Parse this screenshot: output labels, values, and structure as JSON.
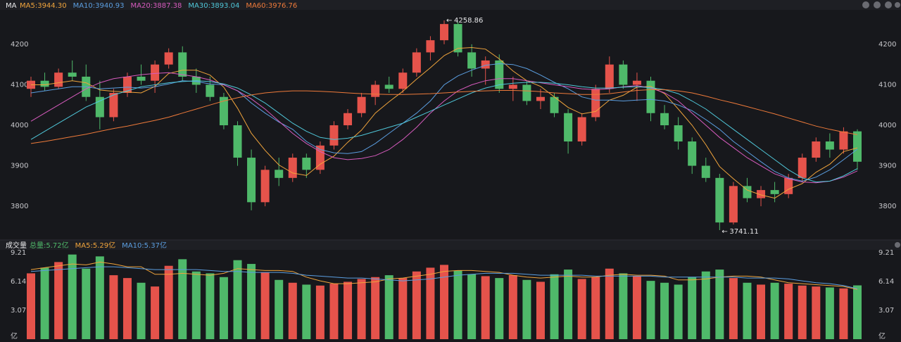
{
  "chart_data": [
    {
      "type": "candlestick",
      "title": "MA",
      "up_color": "#e5534b",
      "down_color": "#4fb96a",
      "grid": false,
      "ylim": [
        3722,
        4285
      ],
      "yticks": [
        3800,
        3900,
        4000,
        4100,
        4200
      ],
      "high_label": "4258.86",
      "low_label": "3741.11",
      "ohlc": [
        [
          4090,
          4120,
          4070,
          4110
        ],
        [
          4110,
          4130,
          4085,
          4095
        ],
        [
          4095,
          4140,
          4090,
          4130
        ],
        [
          4130,
          4160,
          4110,
          4120
        ],
        [
          4120,
          4150,
          4060,
          4070
        ],
        [
          4070,
          4110,
          3990,
          4020
        ],
        [
          4020,
          4090,
          4010,
          4080
        ],
        [
          4080,
          4130,
          4070,
          4120
        ],
        [
          4120,
          4150,
          4100,
          4110
        ],
        [
          4110,
          4160,
          4080,
          4150
        ],
        [
          4150,
          4190,
          4140,
          4180
        ],
        [
          4180,
          4195,
          4110,
          4120
        ],
        [
          4120,
          4140,
          4080,
          4100
        ],
        [
          4100,
          4120,
          4060,
          4070
        ],
        [
          4070,
          4080,
          3990,
          4000
        ],
        [
          4000,
          4010,
          3900,
          3920
        ],
        [
          3920,
          3940,
          3790,
          3810
        ],
        [
          3810,
          3900,
          3800,
          3890
        ],
        [
          3890,
          3920,
          3850,
          3870
        ],
        [
          3870,
          3930,
          3860,
          3920
        ],
        [
          3920,
          3930,
          3870,
          3890
        ],
        [
          3890,
          3960,
          3880,
          3950
        ],
        [
          3950,
          4010,
          3940,
          4000
        ],
        [
          4000,
          4040,
          3990,
          4030
        ],
        [
          4030,
          4080,
          4020,
          4070
        ],
        [
          4070,
          4110,
          4050,
          4100
        ],
        [
          4100,
          4120,
          4080,
          4090
        ],
        [
          4090,
          4140,
          4080,
          4130
        ],
        [
          4130,
          4190,
          4120,
          4180
        ],
        [
          4180,
          4220,
          4160,
          4210
        ],
        [
          4210,
          4258.86,
          4200,
          4250
        ],
        [
          4250,
          4255,
          4170,
          4180
        ],
        [
          4180,
          4200,
          4120,
          4140
        ],
        [
          4140,
          4170,
          4100,
          4160
        ],
        [
          4160,
          4175,
          4080,
          4090
        ],
        [
          4090,
          4120,
          4060,
          4100
        ],
        [
          4100,
          4110,
          4050,
          4060
        ],
        [
          4060,
          4090,
          4040,
          4070
        ],
        [
          4070,
          4080,
          4020,
          4030
        ],
        [
          4030,
          4040,
          3930,
          3960
        ],
        [
          3960,
          4030,
          3950,
          4020
        ],
        [
          4020,
          4100,
          4010,
          4090
        ],
        [
          4090,
          4170,
          4080,
          4150
        ],
        [
          4150,
          4160,
          4090,
          4100
        ],
        [
          4100,
          4130,
          4060,
          4110
        ],
        [
          4110,
          4120,
          4010,
          4030
        ],
        [
          4030,
          4050,
          3990,
          4000
        ],
        [
          4000,
          4020,
          3940,
          3960
        ],
        [
          3960,
          3970,
          3880,
          3900
        ],
        [
          3900,
          3920,
          3860,
          3870
        ],
        [
          3870,
          3880,
          3741.11,
          3760
        ],
        [
          3760,
          3860,
          3755,
          3850
        ],
        [
          3850,
          3870,
          3810,
          3820
        ],
        [
          3820,
          3850,
          3800,
          3840
        ],
        [
          3840,
          3860,
          3810,
          3830
        ],
        [
          3830,
          3880,
          3820,
          3870
        ],
        [
          3870,
          3930,
          3860,
          3920
        ],
        [
          3920,
          3970,
          3910,
          3960
        ],
        [
          3960,
          3980,
          3920,
          3940
        ],
        [
          3940,
          3995,
          3930,
          3985
        ],
        [
          3985,
          3990,
          3890,
          3910
        ]
      ],
      "series": [
        {
          "name": "MA5:3944.30",
          "color": "#f0a43c",
          "values": [
            4100,
            4100,
            4105,
            4110,
            4105,
            4087,
            4084,
            4082,
            4080,
            4096,
            4128,
            4136,
            4136,
            4124,
            4094,
            4042,
            3980,
            3938,
            3902,
            3882,
            3876,
            3904,
            3924,
            3958,
            3988,
            4030,
            4058,
            4084,
            4114,
            4142,
            4172,
            4190,
            4192,
            4188,
            4164,
            4134,
            4110,
            4096,
            4070,
            4044,
            4028,
            4034,
            4062,
            4074,
            4094,
            4096,
            4078,
            4040,
            4000,
            3952,
            3898,
            3868,
            3840,
            3828,
            3820,
            3842,
            3856,
            3884,
            3904,
            3935,
            3944.3
          ]
        },
        {
          "name": "MA10:3940.93",
          "color": "#5b9ee0",
          "values": [
            4080,
            4085,
            4090,
            4095,
            4095,
            4090,
            4092,
            4094,
            4092,
            4095,
            4102,
            4110,
            4108,
            4102,
            4100,
            4085,
            4055,
            4030,
            4008,
            3990,
            3960,
            3940,
            3932,
            3930,
            3935,
            3955,
            3980,
            4005,
            4030,
            4060,
            4100,
            4122,
            4136,
            4148,
            4152,
            4150,
            4140,
            4124,
            4106,
            4090,
            4070,
            4062,
            4062,
            4060,
            4062,
            4064,
            4060,
            4050,
            4036,
            4014,
            3990,
            3960,
            3935,
            3910,
            3886,
            3870,
            3862,
            3872,
            3890,
            3915,
            3940.93
          ]
        },
        {
          "name": "MA20:3887.38",
          "color": "#d65bbd",
          "values": [
            4010,
            4030,
            4050,
            4070,
            4090,
            4105,
            4115,
            4120,
            4125,
            4128,
            4130,
            4125,
            4120,
            4112,
            4100,
            4085,
            4065,
            4040,
            4010,
            3980,
            3955,
            3935,
            3920,
            3915,
            3918,
            3925,
            3940,
            3965,
            3995,
            4030,
            4060,
            4085,
            4100,
            4110,
            4115,
            4115,
            4110,
            4105,
            4100,
            4095,
            4090,
            4088,
            4090,
            4095,
            4098,
            4092,
            4080,
            4060,
            4030,
            4000,
            3970,
            3945,
            3920,
            3900,
            3880,
            3868,
            3860,
            3858,
            3862,
            3872,
            3887.38
          ]
        },
        {
          "name": "MA30:3893.04",
          "color": "#4fc6d8",
          "values": [
            3965,
            3985,
            4005,
            4025,
            4045,
            4060,
            4075,
            4085,
            4095,
            4100,
            4105,
            4108,
            4110,
            4108,
            4102,
            4092,
            4075,
            4055,
            4030,
            4005,
            3985,
            3970,
            3965,
            3968,
            3975,
            3985,
            3995,
            4005,
            4020,
            4035,
            4050,
            4065,
            4080,
            4092,
            4100,
            4104,
            4106,
            4106,
            4104,
            4100,
            4095,
            4092,
            4092,
            4094,
            4095,
            4093,
            4088,
            4078,
            4060,
            4040,
            4015,
            3990,
            3965,
            3940,
            3915,
            3890,
            3870,
            3860,
            3862,
            3875,
            3893.04
          ]
        },
        {
          "name": "MA60:3976.76",
          "color": "#ee7a3a",
          "values": [
            3955,
            3960,
            3966,
            3972,
            3978,
            3985,
            3992,
            3998,
            4005,
            4012,
            4020,
            4030,
            4040,
            4050,
            4060,
            4068,
            4075,
            4080,
            4083,
            4085,
            4085,
            4084,
            4082,
            4080,
            4078,
            4077,
            4076,
            4076,
            4077,
            4078,
            4080,
            4082,
            4084,
            4085,
            4086,
            4086,
            4085,
            4083,
            4080,
            4078,
            4076,
            4076,
            4078,
            4082,
            4086,
            4088,
            4088,
            4085,
            4080,
            4072,
            4063,
            4055,
            4046,
            4037,
            4028,
            4018,
            4008,
            3998,
            3990,
            3983,
            3976.76
          ]
        }
      ]
    },
    {
      "type": "volume",
      "title": "成交量",
      "unit": "亿",
      "grid": false,
      "ylim": [
        0,
        9.5
      ],
      "yticks": [
        3.07,
        6.14,
        9.21
      ],
      "series": [
        {
          "name": "总量:5.72亿",
          "color": "#4fb96a",
          "values": [
            7.0,
            7.6,
            8.2,
            9.0,
            7.5,
            8.8,
            6.8,
            6.5,
            6.0,
            5.6,
            7.8,
            8.5,
            7.2,
            7.0,
            6.6,
            8.4,
            8.0,
            7.1,
            6.3,
            6.0,
            5.8,
            5.7,
            5.9,
            6.1,
            6.4,
            6.6,
            6.8,
            6.5,
            7.2,
            7.6,
            7.9,
            7.3,
            6.9,
            6.7,
            6.5,
            6.8,
            6.3,
            6.1,
            6.9,
            7.4,
            6.4,
            6.6,
            7.5,
            7.0,
            6.7,
            6.2,
            6.0,
            5.8,
            6.6,
            7.2,
            7.4,
            6.5,
            6.0,
            5.8,
            6.0,
            5.9,
            5.7,
            5.6,
            5.5,
            5.4,
            5.72
          ]
        },
        {
          "name": "MA5:5.29亿",
          "color": "#f0a43c",
          "values": [
            7.4,
            7.6,
            7.8,
            8.0,
            7.9,
            8.2,
            8.0,
            7.7,
            7.7,
            6.9,
            6.9,
            7.0,
            6.9,
            6.8,
            7.0,
            7.5,
            7.4,
            7.3,
            7.3,
            7.2,
            6.6,
            6.2,
            5.9,
            5.9,
            6.0,
            6.1,
            6.4,
            6.5,
            6.7,
            6.9,
            7.2,
            7.3,
            7.3,
            7.2,
            7.1,
            6.8,
            6.6,
            6.5,
            6.6,
            6.7,
            6.6,
            6.6,
            6.8,
            6.9,
            6.8,
            6.8,
            6.7,
            6.3,
            6.3,
            6.4,
            6.6,
            6.7,
            6.7,
            6.6,
            6.3,
            6.0,
            5.9,
            5.8,
            5.7,
            5.6,
            5.29
          ]
        },
        {
          "name": "MA10:5.37亿",
          "color": "#5b9ee0",
          "values": [
            7.2,
            7.3,
            7.4,
            7.5,
            7.6,
            7.7,
            7.7,
            7.6,
            7.5,
            7.4,
            7.4,
            7.4,
            7.4,
            7.3,
            7.2,
            7.2,
            7.1,
            7.1,
            7.1,
            7.0,
            6.8,
            6.7,
            6.6,
            6.5,
            6.5,
            6.4,
            6.3,
            6.2,
            6.3,
            6.4,
            6.6,
            6.8,
            6.9,
            7.0,
            7.0,
            7.0,
            6.9,
            6.8,
            6.8,
            6.8,
            6.8,
            6.7,
            6.7,
            6.7,
            6.7,
            6.7,
            6.6,
            6.6,
            6.6,
            6.6,
            6.6,
            6.6,
            6.5,
            6.5,
            6.5,
            6.4,
            6.2,
            6.0,
            5.9,
            5.7,
            5.37
          ]
        }
      ]
    }
  ]
}
